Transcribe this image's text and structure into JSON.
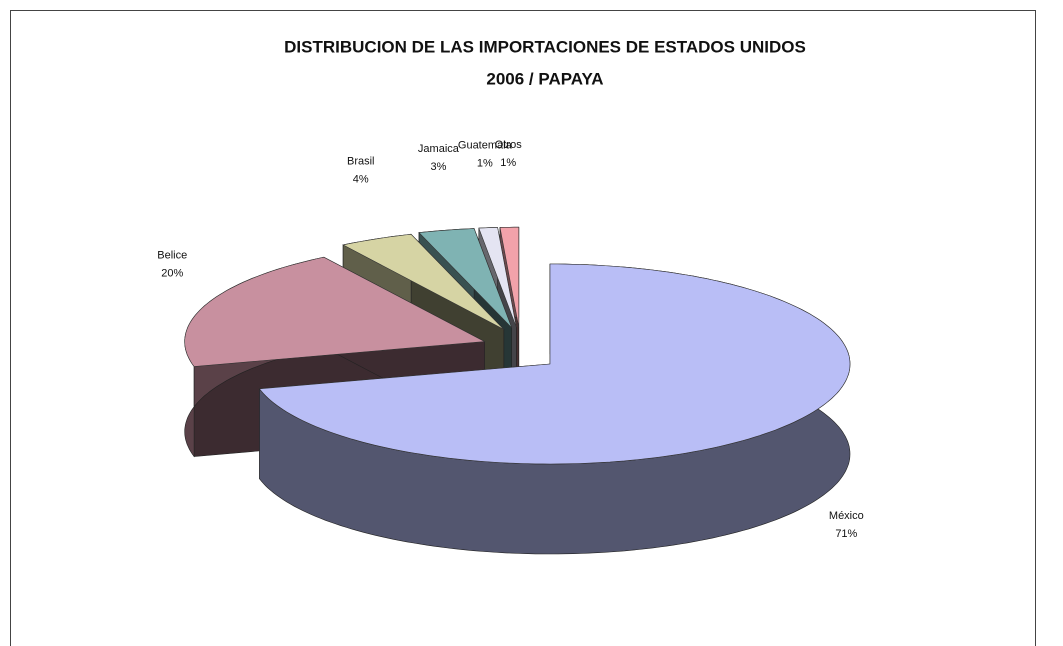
{
  "chart_data": {
    "type": "pie",
    "title": "DISTRIBUCION DE LAS IMPORTACIONES DE ESTADOS UNIDOS",
    "subtitle": "2006 / PAPAYA",
    "categories": [
      "México",
      "Belice",
      "Brasil",
      "Jamaica",
      "Guatemala",
      "Otros"
    ],
    "values": [
      71,
      20,
      4,
      3,
      1,
      1
    ],
    "value_labels": [
      "71%",
      "20%",
      "4%",
      "3%",
      "1%",
      "1%"
    ],
    "colors": [
      "#b9bef6",
      "#c8909f",
      "#d6d4a4",
      "#7fb3b3",
      "#e4e4f2",
      "#f2a2aa"
    ]
  }
}
